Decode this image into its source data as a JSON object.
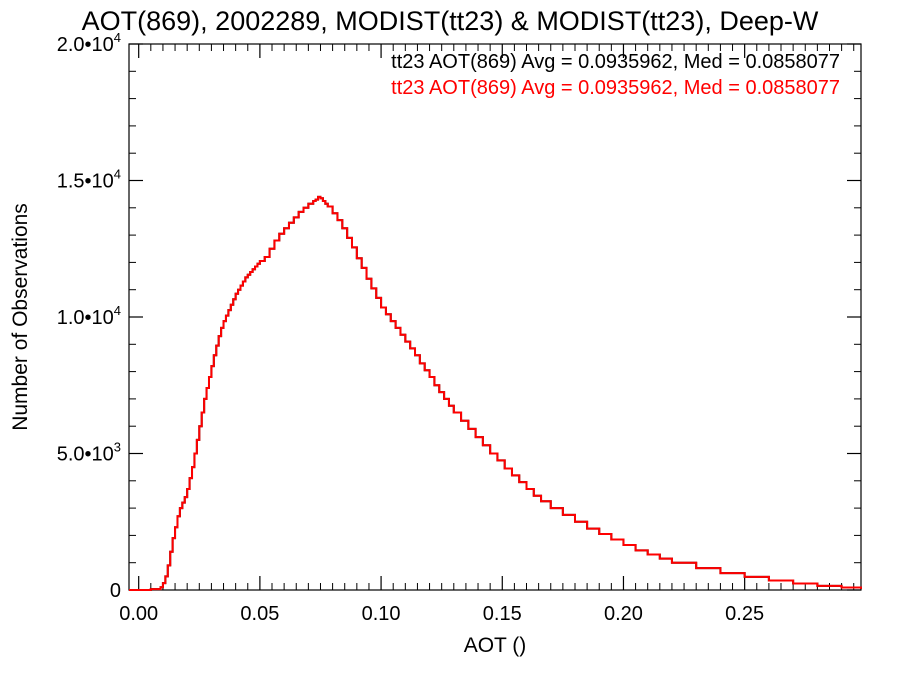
{
  "chart_data": {
    "type": "line",
    "step": true,
    "title": "AOT(869), 2002289, MODIST(tt23) & MODIST(tt23), Deep-W",
    "xlabel": "AOT ()",
    "ylabel": "Number of Observations",
    "xlim": [
      -0.004,
      0.298
    ],
    "ylim": [
      0,
      20000
    ],
    "x_ticks": [
      {
        "value": 0.0,
        "label": "0.00"
      },
      {
        "value": 0.05,
        "label": "0.05"
      },
      {
        "value": 0.1,
        "label": "0.10"
      },
      {
        "value": 0.15,
        "label": "0.15"
      },
      {
        "value": 0.2,
        "label": "0.20"
      },
      {
        "value": 0.25,
        "label": "0.25"
      }
    ],
    "y_ticks": [
      {
        "value": 0,
        "mantissa": "0",
        "exp": ""
      },
      {
        "value": 5000,
        "mantissa": "5.0•10",
        "exp": "3"
      },
      {
        "value": 10000,
        "mantissa": "1.0•10",
        "exp": "4"
      },
      {
        "value": 15000,
        "mantissa": "1.5•10",
        "exp": "4"
      },
      {
        "value": 20000,
        "mantissa": "2.0•10",
        "exp": "4"
      }
    ],
    "annotations": [
      {
        "text": "tt23 AOT(869) Avg = 0.0935962, Med = 0.0858077",
        "color": "#000000"
      },
      {
        "text": "tt23 AOT(869) Avg = 0.0935962, Med = 0.0858077",
        "color": "#ff0000"
      }
    ],
    "series": [
      {
        "color": "#000000",
        "x": [
          -0.004,
          0.0,
          0.005,
          0.009,
          0.01,
          0.011,
          0.012,
          0.013,
          0.014,
          0.015,
          0.016,
          0.017,
          0.018,
          0.019,
          0.02,
          0.021,
          0.022,
          0.023,
          0.024,
          0.025,
          0.026,
          0.027,
          0.028,
          0.029,
          0.03,
          0.031,
          0.032,
          0.033,
          0.034,
          0.035,
          0.036,
          0.037,
          0.038,
          0.039,
          0.04,
          0.041,
          0.042,
          0.043,
          0.044,
          0.045,
          0.046,
          0.047,
          0.048,
          0.049,
          0.05,
          0.052,
          0.054,
          0.056,
          0.058,
          0.06,
          0.062,
          0.064,
          0.066,
          0.068,
          0.07,
          0.072,
          0.073,
          0.074,
          0.075,
          0.076,
          0.077,
          0.078,
          0.08,
          0.082,
          0.084,
          0.086,
          0.088,
          0.09,
          0.092,
          0.094,
          0.096,
          0.098,
          0.1,
          0.102,
          0.104,
          0.106,
          0.108,
          0.11,
          0.112,
          0.114,
          0.116,
          0.118,
          0.12,
          0.122,
          0.124,
          0.126,
          0.128,
          0.13,
          0.133,
          0.136,
          0.139,
          0.142,
          0.145,
          0.148,
          0.151,
          0.154,
          0.157,
          0.16,
          0.163,
          0.166,
          0.17,
          0.175,
          0.18,
          0.185,
          0.19,
          0.195,
          0.2,
          0.205,
          0.21,
          0.215,
          0.22,
          0.23,
          0.24,
          0.25,
          0.26,
          0.27,
          0.28,
          0.29,
          0.298
        ],
        "y": [
          0,
          0,
          30,
          100,
          250,
          500,
          900,
          1400,
          1900,
          2300,
          2700,
          3000,
          3200,
          3400,
          3700,
          4100,
          4500,
          5000,
          5500,
          6000,
          6500,
          7000,
          7400,
          7800,
          8200,
          8600,
          8950,
          9300,
          9600,
          9850,
          10050,
          10250,
          10450,
          10650,
          10850,
          11000,
          11150,
          11300,
          11450,
          11550,
          11650,
          11750,
          11850,
          11950,
          12050,
          12200,
          12500,
          12800,
          13050,
          13250,
          13450,
          13650,
          13850,
          14000,
          14150,
          14250,
          14300,
          14400,
          14350,
          14250,
          14150,
          14050,
          13800,
          13550,
          13250,
          12900,
          12550,
          12150,
          11800,
          11400,
          11050,
          10700,
          10350,
          10100,
          9850,
          9600,
          9350,
          9100,
          8850,
          8600,
          8300,
          8050,
          7800,
          7500,
          7250,
          7000,
          6750,
          6500,
          6200,
          5900,
          5600,
          5300,
          5000,
          4750,
          4450,
          4200,
          3950,
          3700,
          3450,
          3250,
          3000,
          2750,
          2500,
          2250,
          2050,
          1850,
          1650,
          1450,
          1300,
          1150,
          1000,
          800,
          620,
          480,
          350,
          240,
          150,
          90,
          40
        ]
      },
      {
        "color": "#ff0000",
        "x": [
          -0.004,
          0.0,
          0.005,
          0.009,
          0.01,
          0.011,
          0.012,
          0.013,
          0.014,
          0.015,
          0.016,
          0.017,
          0.018,
          0.019,
          0.02,
          0.021,
          0.022,
          0.023,
          0.024,
          0.025,
          0.026,
          0.027,
          0.028,
          0.029,
          0.03,
          0.031,
          0.032,
          0.033,
          0.034,
          0.035,
          0.036,
          0.037,
          0.038,
          0.039,
          0.04,
          0.041,
          0.042,
          0.043,
          0.044,
          0.045,
          0.046,
          0.047,
          0.048,
          0.049,
          0.05,
          0.052,
          0.054,
          0.056,
          0.058,
          0.06,
          0.062,
          0.064,
          0.066,
          0.068,
          0.07,
          0.072,
          0.073,
          0.074,
          0.075,
          0.076,
          0.077,
          0.078,
          0.08,
          0.082,
          0.084,
          0.086,
          0.088,
          0.09,
          0.092,
          0.094,
          0.096,
          0.098,
          0.1,
          0.102,
          0.104,
          0.106,
          0.108,
          0.11,
          0.112,
          0.114,
          0.116,
          0.118,
          0.12,
          0.122,
          0.124,
          0.126,
          0.128,
          0.13,
          0.133,
          0.136,
          0.139,
          0.142,
          0.145,
          0.148,
          0.151,
          0.154,
          0.157,
          0.16,
          0.163,
          0.166,
          0.17,
          0.175,
          0.18,
          0.185,
          0.19,
          0.195,
          0.2,
          0.205,
          0.21,
          0.215,
          0.22,
          0.23,
          0.24,
          0.25,
          0.26,
          0.27,
          0.28,
          0.29,
          0.298
        ],
        "y": [
          0,
          0,
          30,
          100,
          250,
          500,
          900,
          1400,
          1900,
          2300,
          2700,
          3000,
          3200,
          3400,
          3700,
          4100,
          4500,
          5000,
          5500,
          6000,
          6500,
          7000,
          7400,
          7800,
          8200,
          8600,
          8950,
          9300,
          9600,
          9850,
          10050,
          10250,
          10450,
          10650,
          10850,
          11000,
          11150,
          11300,
          11450,
          11550,
          11650,
          11750,
          11850,
          11950,
          12050,
          12200,
          12500,
          12800,
          13050,
          13250,
          13450,
          13650,
          13850,
          14000,
          14150,
          14250,
          14300,
          14400,
          14350,
          14250,
          14150,
          14050,
          13800,
          13550,
          13250,
          12900,
          12550,
          12150,
          11800,
          11400,
          11050,
          10700,
          10350,
          10100,
          9850,
          9600,
          9350,
          9100,
          8850,
          8600,
          8300,
          8050,
          7800,
          7500,
          7250,
          7000,
          6750,
          6500,
          6200,
          5900,
          5600,
          5300,
          5000,
          4750,
          4450,
          4200,
          3950,
          3700,
          3450,
          3250,
          3000,
          2750,
          2500,
          2250,
          2050,
          1850,
          1650,
          1450,
          1300,
          1150,
          1000,
          800,
          620,
          480,
          350,
          240,
          150,
          90,
          40
        ]
      }
    ]
  }
}
